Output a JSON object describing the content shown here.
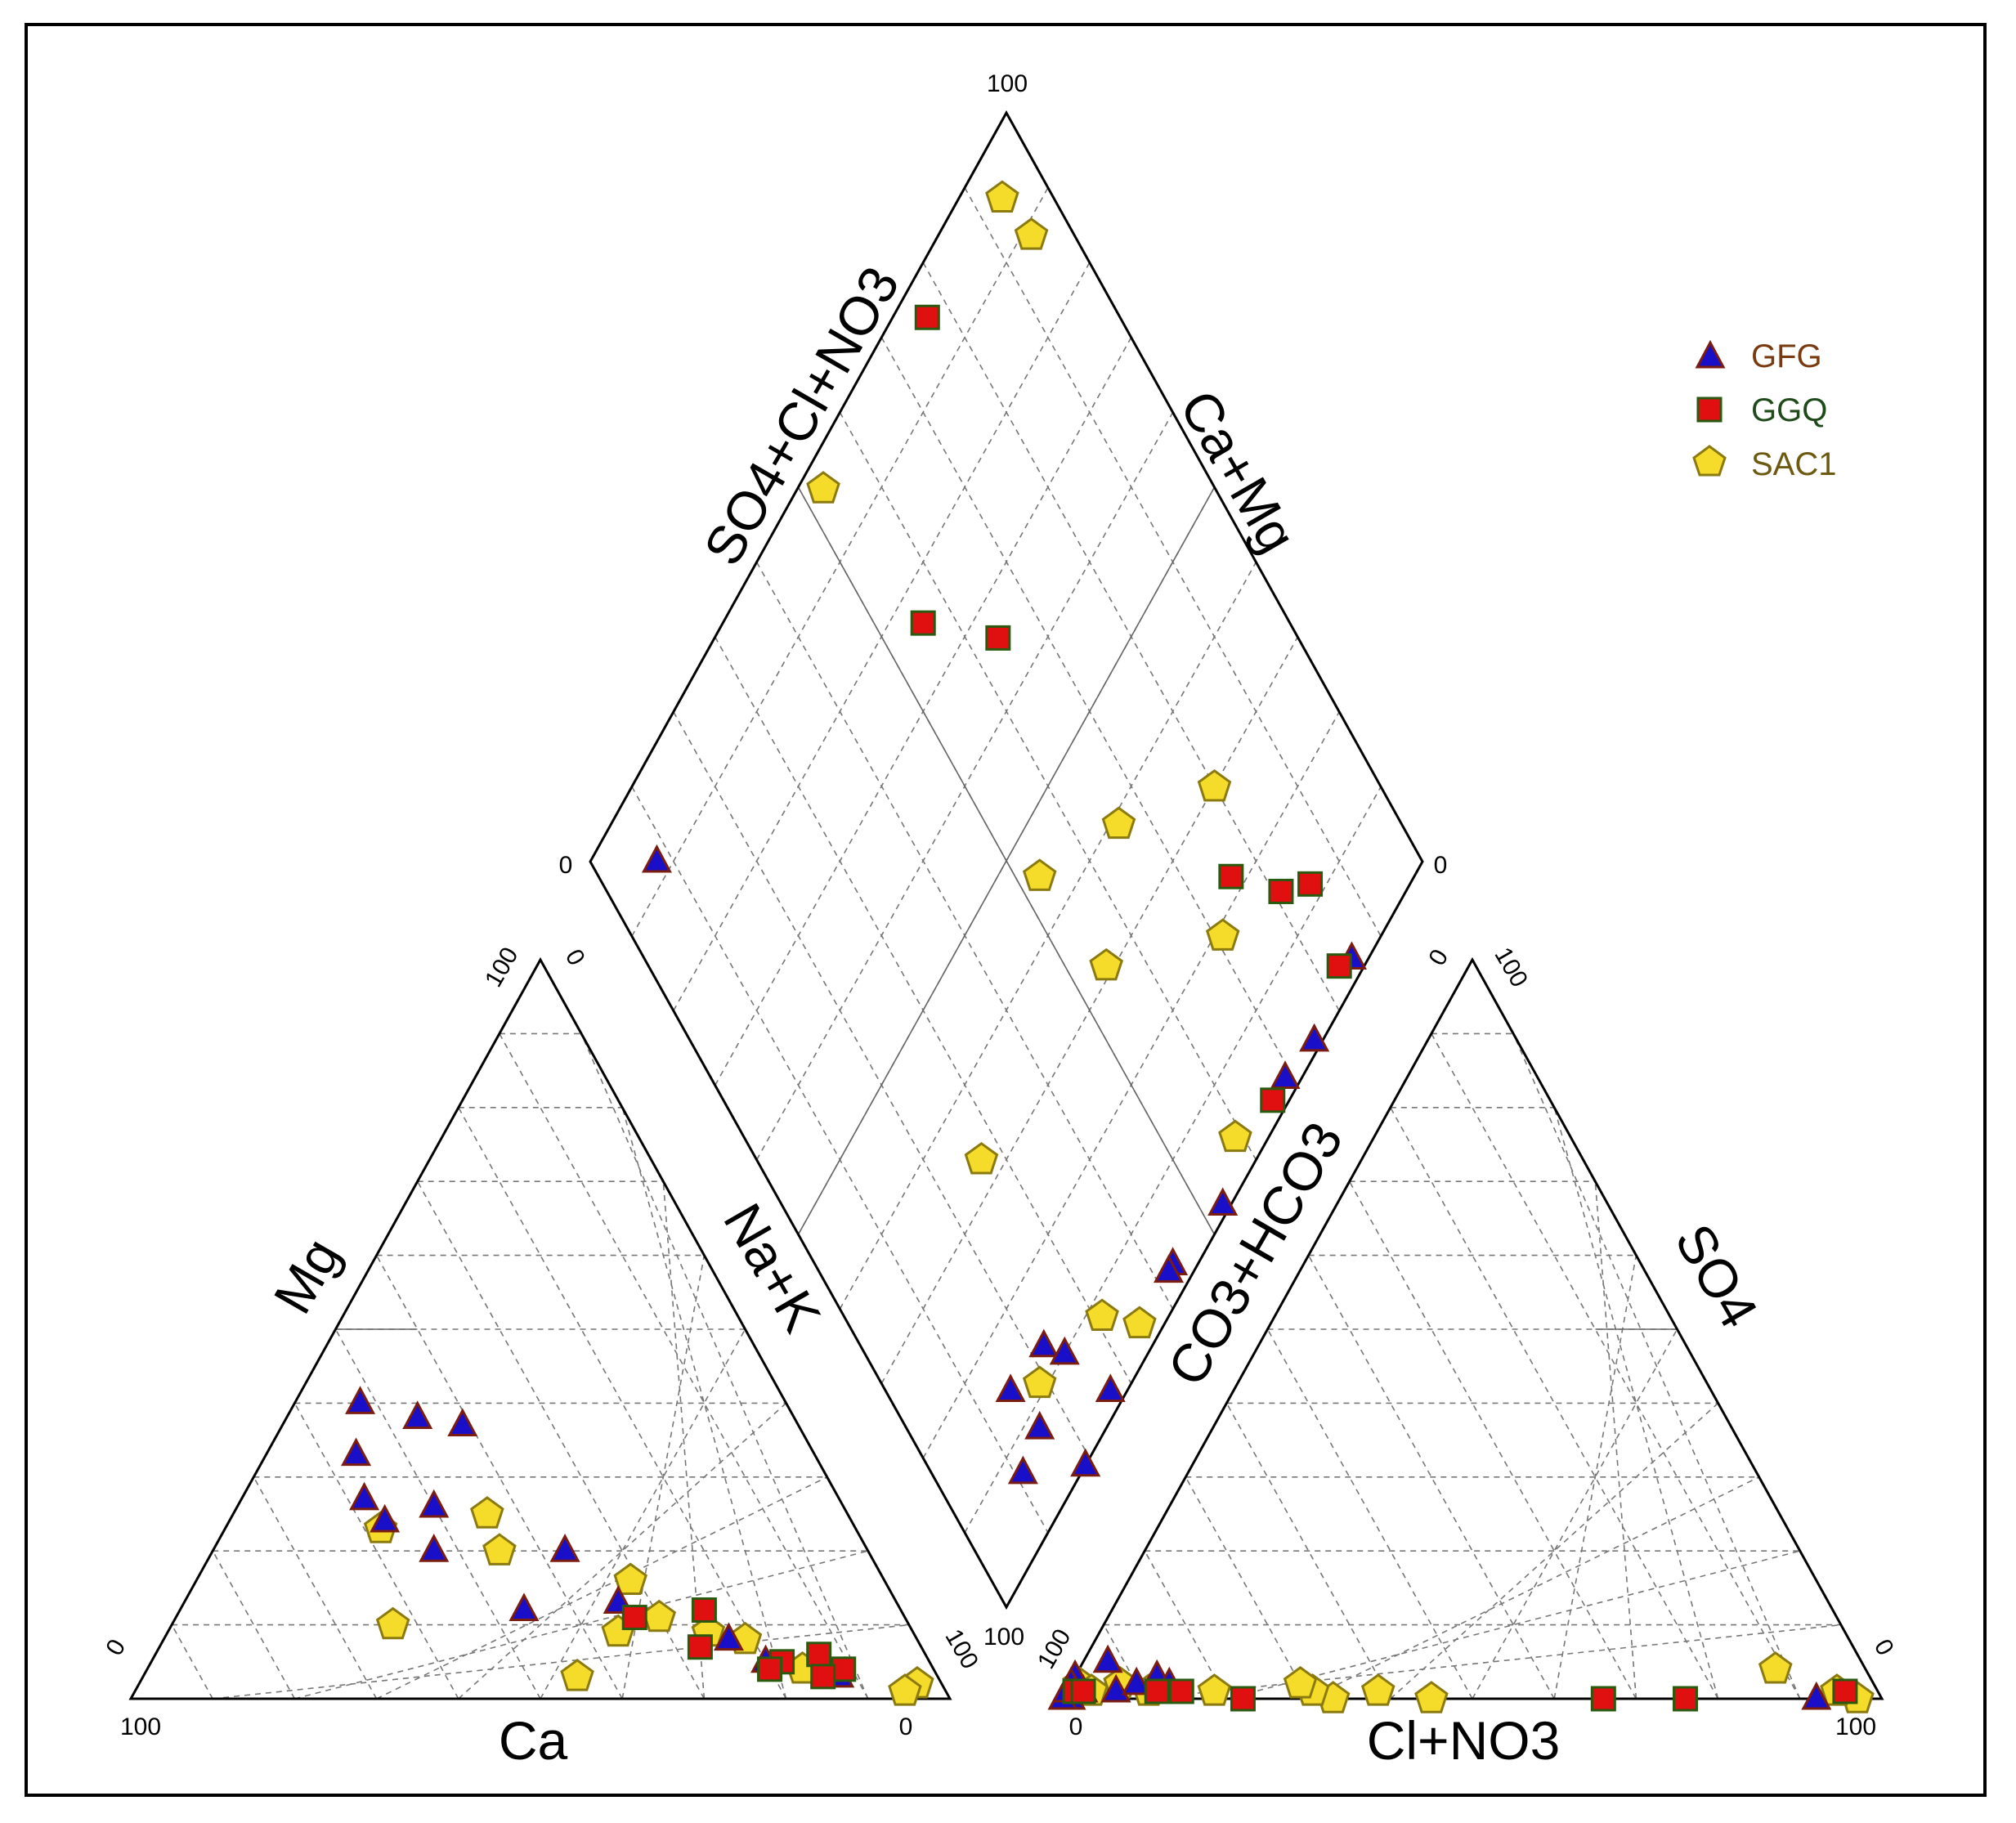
{
  "chart_data": {
    "type": "scatter",
    "subtype": "piper-diagram",
    "grid_step": 10,
    "legend_position": "top-right",
    "series": [
      {
        "name": "GFG",
        "marker": "triangle",
        "fill": "#1a0fc8",
        "edge": "#7a1c10",
        "text_color": "#7a3a10"
      },
      {
        "name": "GGQ",
        "marker": "square",
        "fill": "#e01010",
        "edge": "#2a5a10",
        "text_color": "#1f4a1a"
      },
      {
        "name": "SAC1",
        "marker": "pentagon",
        "fill": "#f5dc2a",
        "edge": "#8a7a10",
        "text_color": "#6b5a10"
      }
    ],
    "axes": {
      "cation_triangle": {
        "bottom": "Ca",
        "left": "Mg",
        "right": "Na+K",
        "ticks": {
          "bottom_left": "100",
          "bottom_right": "0",
          "left_bottom": "0",
          "left_top": "100",
          "right_top": "0",
          "right_bottom": "100"
        }
      },
      "anion_triangle": {
        "bottom": "Cl+NO3",
        "left": "CO3+HCO3",
        "right": "SO4",
        "ticks": {
          "bottom_left": "0",
          "bottom_right": "100",
          "left_bottom": "100",
          "left_top": "0",
          "right_top": "100",
          "right_bottom": "0"
        }
      },
      "diamond": {
        "upper_left": "SO4+Cl+NO3",
        "upper_right": "Ca+Mg",
        "ticks": {
          "top": "100",
          "left": "0",
          "right": "0",
          "bottom": "100"
        }
      }
    },
    "samples": {
      "GFG": [
        {
          "ca": 52,
          "mg": 40,
          "na_k": 8,
          "cl_no3": 92,
          "so4": 0,
          "hco3": 8
        },
        {
          "ca": 46,
          "mg": 38,
          "na_k": 16,
          "cl_no3": 3,
          "so4": 5,
          "hco3": 92
        },
        {
          "ca": 41,
          "mg": 37,
          "na_k": 22,
          "cl_no3": 10,
          "so4": 3,
          "hco3": 87
        },
        {
          "ca": 56,
          "mg": 33,
          "na_k": 11,
          "cl_no3": 6,
          "so4": 1,
          "hco3": 93
        },
        {
          "ca": 50,
          "mg": 26,
          "na_k": 24,
          "cl_no3": 8,
          "so4": 2,
          "hco3": 90
        },
        {
          "ca": 58,
          "mg": 27,
          "na_k": 15,
          "cl_no3": 12,
          "so4": 2,
          "hco3": 86
        },
        {
          "ca": 53,
          "mg": 20,
          "na_k": 27,
          "cl_no3": 1,
          "so4": 1,
          "hco3": 98
        },
        {
          "ca": 37,
          "mg": 20,
          "na_k": 43,
          "cl_no3": 2,
          "so4": 1,
          "hco3": 97
        },
        {
          "ca": 34,
          "mg": 13,
          "na_k": 53,
          "cl_no3": 1,
          "so4": 0,
          "hco3": 99
        },
        {
          "ca": 46,
          "mg": 12,
          "na_k": 42,
          "cl_no3": 0,
          "so4": 3,
          "hco3": 97
        },
        {
          "ca": 23,
          "mg": 8,
          "na_k": 69,
          "cl_no3": 0,
          "so4": 2,
          "hco3": 98
        },
        {
          "ca": 12,
          "mg": 3,
          "na_k": 85,
          "cl_no3": 1,
          "so4": 1,
          "hco3": 98
        },
        {
          "ca": 57,
          "mg": 24,
          "na_k": 19,
          "cl_no3": 0,
          "so4": 0,
          "hco3": 100
        },
        {
          "ca": 20,
          "mg": 5,
          "na_k": 75,
          "cl_no3": 0,
          "so4": 1,
          "hco3": 99
        }
      ],
      "GGQ": [
        {
          "ca": 33,
          "mg": 11,
          "na_k": 56,
          "cl_no3": 76,
          "so4": 0,
          "hco3": 24
        },
        {
          "ca": 24,
          "mg": 12,
          "na_k": 64,
          "cl_no3": 66,
          "so4": 0,
          "hco3": 34
        },
        {
          "ca": 18,
          "mg": 5,
          "na_k": 77,
          "cl_no3": 95,
          "so4": 1,
          "hco3": 4
        },
        {
          "ca": 27,
          "mg": 7,
          "na_k": 66,
          "cl_no3": 1,
          "so4": 1,
          "hco3": 98
        },
        {
          "ca": 20,
          "mg": 4,
          "na_k": 76,
          "cl_no3": 22,
          "so4": 0,
          "hco3": 78
        },
        {
          "ca": 13,
          "mg": 6,
          "na_k": 81,
          "cl_no3": 14,
          "so4": 1,
          "hco3": 85
        },
        {
          "ca": 11,
          "mg": 4,
          "na_k": 85,
          "cl_no3": 11,
          "so4": 1,
          "hco3": 88
        },
        {
          "ca": 14,
          "mg": 3,
          "na_k": 83,
          "cl_no3": 2,
          "so4": 1,
          "hco3": 97
        }
      ],
      "SAC1": [
        {
          "ca": 44,
          "mg": 3,
          "na_k": 53,
          "cl_no3": 97,
          "so4": 0,
          "hco3": 3
        },
        {
          "ca": 63,
          "mg": 10,
          "na_k": 27,
          "cl_no3": 33,
          "so4": 0,
          "hco3": 67
        },
        {
          "ca": 3,
          "mg": 2,
          "na_k": 95,
          "cl_no3": 85,
          "so4": 4,
          "hco3": 11
        },
        {
          "ca": 36,
          "mg": 9,
          "na_k": 55,
          "cl_no3": 30,
          "so4": 1,
          "hco3": 69
        },
        {
          "ca": 25,
          "mg": 9,
          "na_k": 66,
          "cl_no3": 38,
          "so4": 1,
          "hco3": 61
        },
        {
          "ca": 31,
          "mg": 16,
          "na_k": 53,
          "cl_no3": 45,
          "so4": 0,
          "hco3": 55
        },
        {
          "ca": 58,
          "mg": 23,
          "na_k": 19,
          "cl_no3": 10,
          "so4": 1,
          "hco3": 89
        },
        {
          "ca": 44,
          "mg": 25,
          "na_k": 31,
          "cl_no3": 6,
          "so4": 2,
          "hco3": 92
        },
        {
          "ca": 45,
          "mg": 20,
          "na_k": 35,
          "cl_no3": 1,
          "so4": 2,
          "hco3": 97
        },
        {
          "ca": 30,
          "mg": 11,
          "na_k": 59,
          "cl_no3": 3,
          "so4": 1,
          "hco3": 96
        },
        {
          "ca": 21,
          "mg": 8,
          "na_k": 71,
          "cl_no3": 18,
          "so4": 1,
          "hco3": 81
        },
        {
          "ca": 16,
          "mg": 4,
          "na_k": 80,
          "cl_no3": 28,
          "so4": 2,
          "hco3": 70
        },
        {
          "ca": 5,
          "mg": 1,
          "na_k": 94,
          "cl_no3": 94,
          "so4": 1,
          "hco3": 5
        }
      ]
    }
  }
}
